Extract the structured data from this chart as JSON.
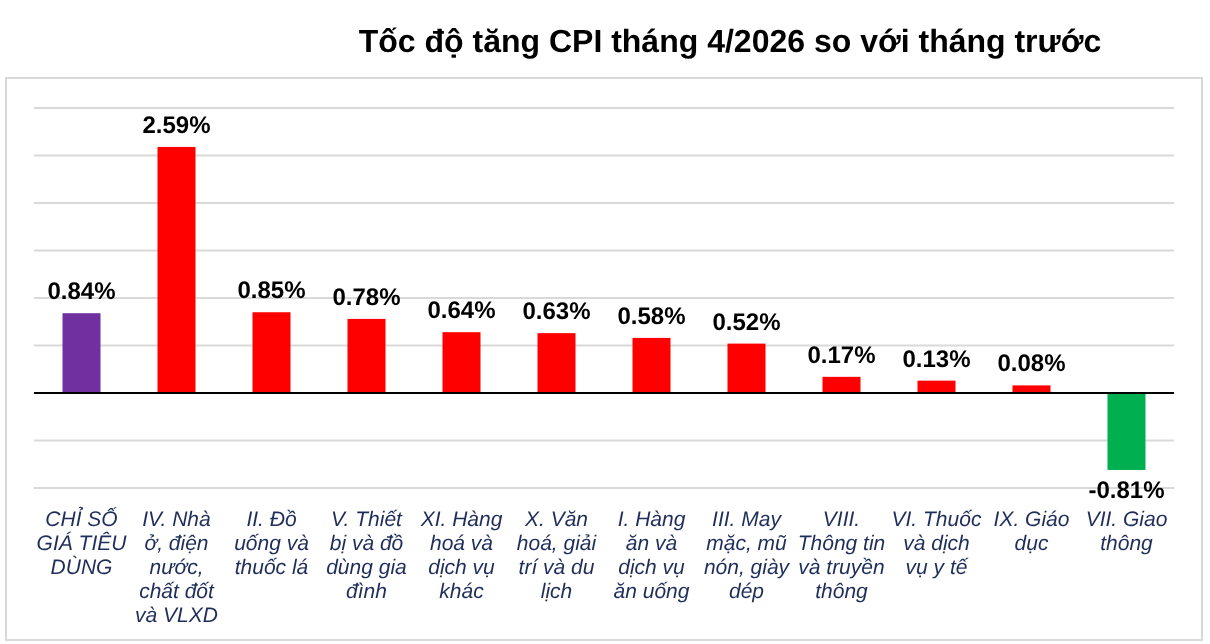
{
  "chart_data": {
    "type": "bar",
    "title": "Tốc độ tăng CPI tháng 4/2026 so với tháng trước",
    "categories": [
      "CHỈ SỐ GIÁ TIÊU DÙNG",
      "IV. Nhà ở, điện nước, chất đốt và VLXD",
      "II. Đồ uống và thuốc lá",
      "V. Thiết bị và đồ dùng gia đình",
      "XI. Hàng hoá và dịch vụ khác",
      "X. Văn hoá, giải trí và du lịch",
      "I. Hàng ăn và dịch vụ ăn uống",
      "III. May mặc, mũ nón, giày dép",
      "VIII. Thông tin và truyền thông",
      "VI. Thuốc và dịch vụ y tế",
      "IX. Giáo dục",
      "VII. Giao thông"
    ],
    "values": [
      0.84,
      2.59,
      0.85,
      0.78,
      0.64,
      0.63,
      0.58,
      0.52,
      0.17,
      0.13,
      0.08,
      -0.81
    ],
    "colors": [
      "#7030a0",
      "#ff0000",
      "#ff0000",
      "#ff0000",
      "#ff0000",
      "#ff0000",
      "#ff0000",
      "#ff0000",
      "#ff0000",
      "#ff0000",
      "#ff0000",
      "#00b050"
    ],
    "value_labels": [
      "0.84%",
      "2.59%",
      "0.85%",
      "0.78%",
      "0.64%",
      "0.63%",
      "0.58%",
      "0.52%",
      "0.17%",
      "0.13%",
      "0.08%",
      "-0.81%"
    ],
    "ylim": [
      -1,
      3
    ],
    "yticks": [
      {
        "value": -1,
        "label": null
      },
      {
        "value": -0.5,
        "label": null
      },
      {
        "value": 0,
        "label": null
      },
      {
        "value": 0.5,
        "label": null
      },
      {
        "value": 1,
        "label": null
      },
      {
        "value": 1.5,
        "label": null
      },
      {
        "value": 2,
        "label": null
      },
      {
        "value": 2.5,
        "label": null
      },
      {
        "value": 3,
        "label": null
      }
    ],
    "grid": "y",
    "tick_labels": "x"
  }
}
